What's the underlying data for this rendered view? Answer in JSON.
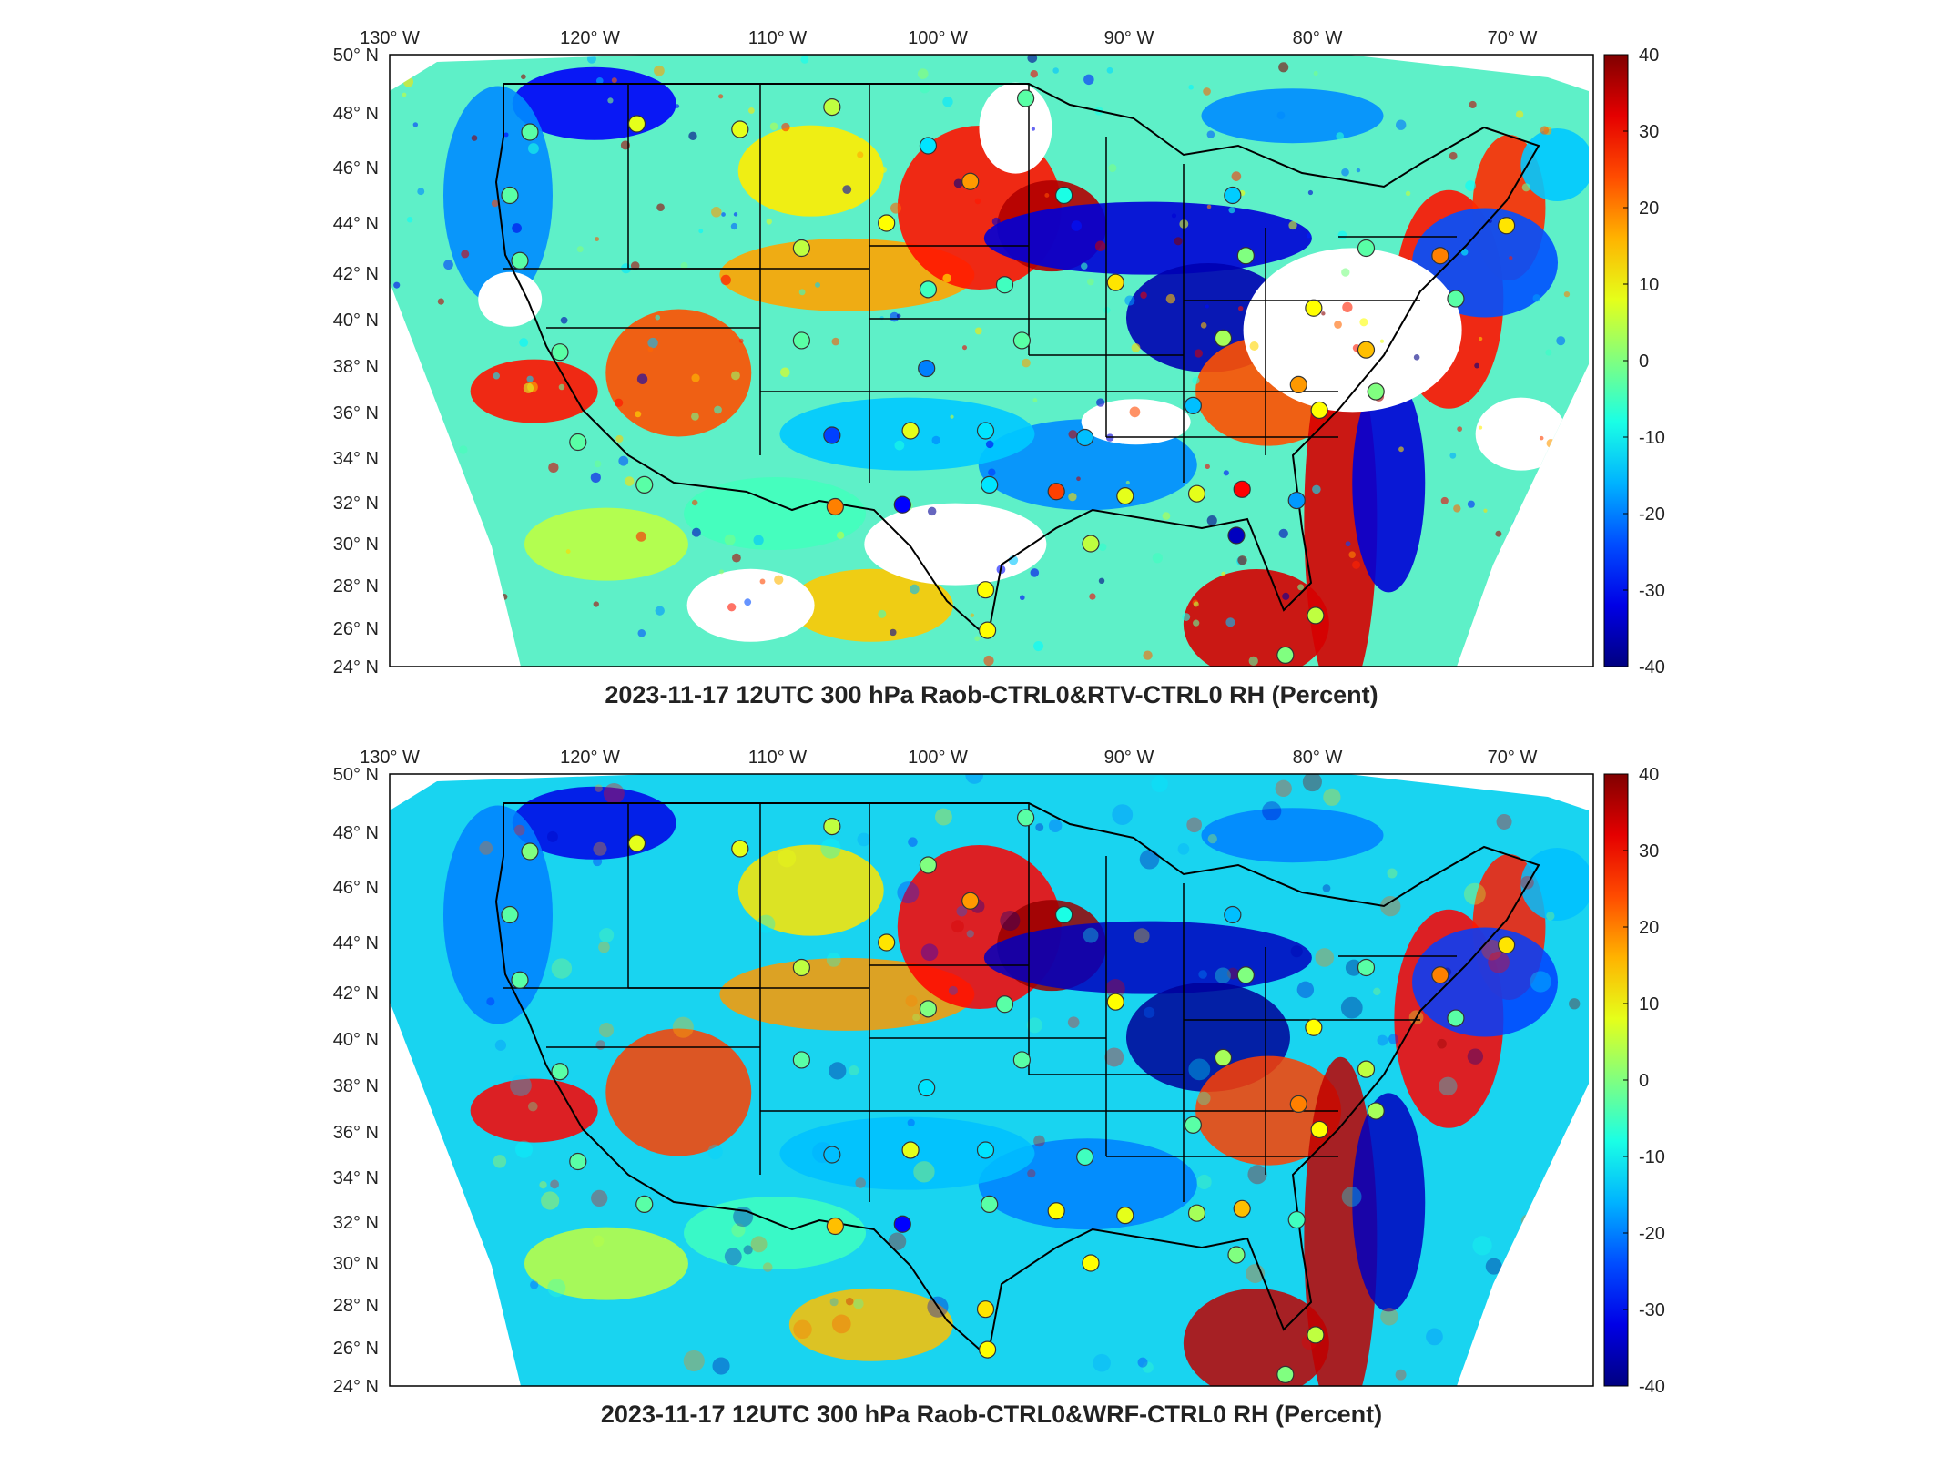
{
  "panels": [
    {
      "id": "top",
      "title": "2023-11-17 12UTC 300 hPa Raob-CTRL0&RTV-CTRL0 RH (Percent)",
      "field_style": "patchy"
    },
    {
      "id": "bottom",
      "title": "2023-11-17 12UTC 300 hPa Raob-CTRL0&WRF-CTRL0 RH (Percent)",
      "field_style": "smooth"
    }
  ],
  "lon_ticks": [
    "130° W",
    "120° W",
    "110° W",
    "100° W",
    "90° W",
    "80° W",
    "70° W"
  ],
  "lon_values": [
    -130,
    -120,
    -110,
    -100,
    -90,
    -80,
    -70
  ],
  "lat_ticks": [
    "50° N",
    "48° N",
    "46° N",
    "44° N",
    "42° N",
    "40° N",
    "38° N",
    "36° N",
    "34° N",
    "32° N",
    "30° N",
    "28° N",
    "26° N",
    "24° N"
  ],
  "lat_values": [
    50,
    48,
    46,
    44,
    42,
    40,
    38,
    36,
    34,
    32,
    30,
    28,
    26,
    24
  ],
  "colorbar": {
    "colormap": "jet",
    "min": -40,
    "max": 40,
    "tick_labels": [
      "40",
      "30",
      "20",
      "10",
      "0",
      "-10",
      "-20",
      "-30",
      "-40"
    ],
    "tick_values": [
      40,
      30,
      20,
      10,
      0,
      -10,
      -20,
      -30,
      -40
    ]
  },
  "stations": [
    {
      "lon": -123.0,
      "lat": 47.3,
      "top": -3,
      "bottom": 0
    },
    {
      "lon": -117.5,
      "lat": 47.6,
      "top": 8,
      "bottom": 8
    },
    {
      "lon": -124.0,
      "lat": 45.0,
      "top": -3,
      "bottom": -3
    },
    {
      "lon": -123.5,
      "lat": 42.5,
      "top": -3,
      "bottom": -3
    },
    {
      "lon": -112.0,
      "lat": 47.4,
      "top": 8,
      "bottom": 8
    },
    {
      "lon": -106.6,
      "lat": 48.2,
      "top": 5,
      "bottom": 5
    },
    {
      "lon": -100.6,
      "lat": 46.8,
      "top": -12,
      "bottom": 0
    },
    {
      "lon": -108.5,
      "lat": 43.0,
      "top": 5,
      "bottom": 5
    },
    {
      "lon": -103.2,
      "lat": 44.0,
      "top": 10,
      "bottom": 12
    },
    {
      "lon": -98.3,
      "lat": 45.5,
      "top": 18,
      "bottom": 18
    },
    {
      "lon": -93.4,
      "lat": 45.0,
      "top": -8,
      "bottom": -8
    },
    {
      "lon": -84.5,
      "lat": 45.0,
      "top": -14,
      "bottom": -15
    },
    {
      "lon": -100.6,
      "lat": 41.3,
      "top": -5,
      "bottom": 0
    },
    {
      "lon": -96.5,
      "lat": 41.5,
      "top": -5,
      "bottom": -3
    },
    {
      "lon": -90.7,
      "lat": 41.6,
      "top": 12,
      "bottom": 10
    },
    {
      "lon": -83.8,
      "lat": 42.7,
      "top": 0,
      "bottom": 0
    },
    {
      "lon": -77.5,
      "lat": 43.0,
      "top": -3,
      "bottom": -3
    },
    {
      "lon": -73.7,
      "lat": 42.7,
      "top": 20,
      "bottom": 20
    },
    {
      "lon": -70.3,
      "lat": 43.9,
      "top": 12,
      "bottom": 12
    },
    {
      "lon": -108.5,
      "lat": 39.1,
      "top": -3,
      "bottom": -3
    },
    {
      "lon": -100.7,
      "lat": 37.9,
      "top": -20,
      "bottom": -12
    },
    {
      "lon": -95.6,
      "lat": 39.1,
      "top": -3,
      "bottom": -3
    },
    {
      "lon": -85.0,
      "lat": 39.2,
      "top": 3,
      "bottom": 3
    },
    {
      "lon": -80.2,
      "lat": 40.5,
      "top": 10,
      "bottom": 10
    },
    {
      "lon": -77.5,
      "lat": 38.7,
      "top": 15,
      "bottom": 5
    },
    {
      "lon": -72.9,
      "lat": 40.9,
      "top": -3,
      "bottom": -3
    },
    {
      "lon": -81.0,
      "lat": 37.2,
      "top": 18,
      "bottom": 20
    },
    {
      "lon": -79.9,
      "lat": 36.1,
      "top": 10,
      "bottom": 10
    },
    {
      "lon": -77.0,
      "lat": 36.9,
      "top": 0,
      "bottom": 3
    },
    {
      "lon": -86.6,
      "lat": 36.3,
      "top": -15,
      "bottom": -3
    },
    {
      "lon": -92.3,
      "lat": 34.9,
      "top": -15,
      "bottom": -5
    },
    {
      "lon": -97.5,
      "lat": 35.2,
      "top": -12,
      "bottom": -12
    },
    {
      "lon": -101.7,
      "lat": 35.2,
      "top": 8,
      "bottom": 8
    },
    {
      "lon": -106.6,
      "lat": 35.0,
      "top": -25,
      "bottom": -15
    },
    {
      "lon": -97.3,
      "lat": 32.8,
      "top": -12,
      "bottom": -3
    },
    {
      "lon": -102.2,
      "lat": 31.9,
      "top": -30,
      "bottom": -30
    },
    {
      "lon": -106.4,
      "lat": 31.8,
      "top": 20,
      "bottom": 15
    },
    {
      "lon": -93.8,
      "lat": 32.5,
      "top": 25,
      "bottom": 10
    },
    {
      "lon": -90.2,
      "lat": 32.3,
      "top": 8,
      "bottom": 8
    },
    {
      "lon": -86.4,
      "lat": 32.4,
      "top": 8,
      "bottom": 3
    },
    {
      "lon": -84.0,
      "lat": 32.6,
      "top": 30,
      "bottom": 15
    },
    {
      "lon": -81.1,
      "lat": 32.1,
      "top": -18,
      "bottom": -5
    },
    {
      "lon": -92.0,
      "lat": 30.0,
      "top": 5,
      "bottom": 10
    },
    {
      "lon": -84.3,
      "lat": 30.4,
      "top": -35,
      "bottom": 0
    },
    {
      "lon": -97.5,
      "lat": 27.8,
      "top": 10,
      "bottom": 12
    },
    {
      "lon": -97.4,
      "lat": 25.9,
      "top": 10,
      "bottom": 10
    },
    {
      "lon": -80.1,
      "lat": 26.6,
      "top": 5,
      "bottom": 5
    },
    {
      "lon": -81.7,
      "lat": 24.6,
      "top": 0,
      "bottom": 0
    },
    {
      "lon": -120.6,
      "lat": 34.7,
      "top": -3,
      "bottom": -3
    },
    {
      "lon": -117.1,
      "lat": 32.8,
      "top": -3,
      "bottom": -3
    },
    {
      "lon": -121.5,
      "lat": 38.6,
      "top": -3,
      "bottom": -3
    },
    {
      "lon": -95.4,
      "lat": 48.5,
      "top": -3,
      "bottom": -3
    }
  ]
}
